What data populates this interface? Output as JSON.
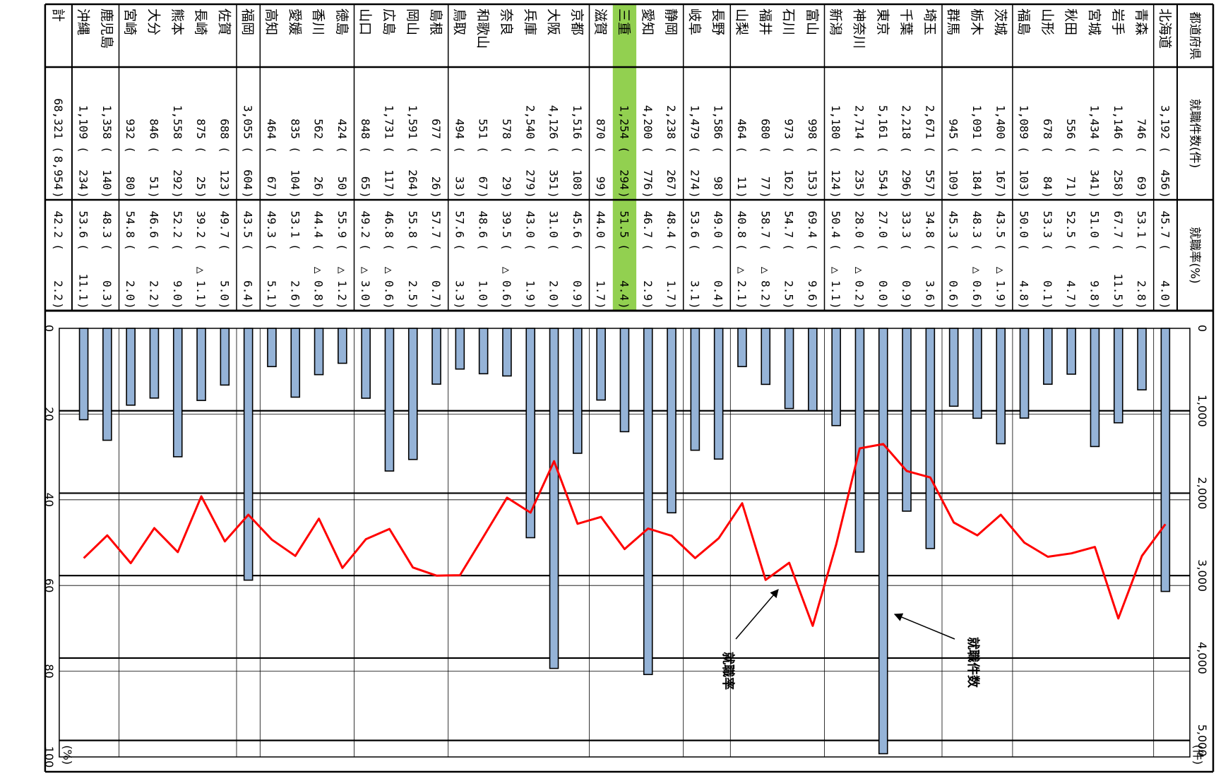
{
  "table": {
    "col_headers": {
      "prefecture": "都道府県",
      "count": "就職件数(件)",
      "rate": "就職率(%)"
    },
    "highlight_color": "#92d050",
    "highlighted_prefecture": "三重",
    "rows": [
      {
        "pref": "北海道",
        "count": "3,192",
        "count_change": "456",
        "rate": "45.7",
        "rate_change": "4.0"
      },
      {
        "pref": "青森",
        "count": "746",
        "count_change": "69",
        "rate": "53.1",
        "rate_change": "2.8"
      },
      {
        "pref": "岩手",
        "count": "1,146",
        "count_change": "258",
        "rate": "67.7",
        "rate_change": "11.5"
      },
      {
        "pref": "宮城",
        "count": "1,434",
        "count_change": "341",
        "rate": "51.0",
        "rate_change": "9.8"
      },
      {
        "pref": "秋田",
        "count": "556",
        "count_change": "71",
        "rate": "52.5",
        "rate_change": "4.7"
      },
      {
        "pref": "山形",
        "count": "678",
        "count_change": "84",
        "rate": "53.3",
        "rate_change": "0.1"
      },
      {
        "pref": "福島",
        "count": "1,089",
        "count_change": "103",
        "rate": "50.0",
        "rate_change": "4.8"
      },
      {
        "pref": "茨城",
        "count": "1,400",
        "count_change": "167",
        "rate": "43.5",
        "rate_change": "△ 1.9"
      },
      {
        "pref": "栃木",
        "count": "1,091",
        "count_change": "184",
        "rate": "48.3",
        "rate_change": "△ 0.6"
      },
      {
        "pref": "群馬",
        "count": "945",
        "count_change": "109",
        "rate": "45.3",
        "rate_change": "0.6"
      },
      {
        "pref": "埼玉",
        "count": "2,671",
        "count_change": "557",
        "rate": "34.8",
        "rate_change": "3.6"
      },
      {
        "pref": "千葉",
        "count": "2,218",
        "count_change": "296",
        "rate": "33.3",
        "rate_change": "0.9"
      },
      {
        "pref": "東京",
        "count": "5,161",
        "count_change": "554",
        "rate": "27.0",
        "rate_change": "0.0"
      },
      {
        "pref": "神奈川",
        "count": "2,714",
        "count_change": "235",
        "rate": "28.0",
        "rate_change": "△ 0.2"
      },
      {
        "pref": "新潟",
        "count": "1,180",
        "count_change": "124",
        "rate": "50.4",
        "rate_change": "△ 1.1"
      },
      {
        "pref": "富山",
        "count": "998",
        "count_change": "153",
        "rate": "69.4",
        "rate_change": "9.6"
      },
      {
        "pref": "石川",
        "count": "973",
        "count_change": "162",
        "rate": "54.7",
        "rate_change": "2.5"
      },
      {
        "pref": "福井",
        "count": "680",
        "count_change": "77",
        "rate": "58.7",
        "rate_change": "△ 8.2"
      },
      {
        "pref": "山梨",
        "count": "464",
        "count_change": "11",
        "rate": "40.8",
        "rate_change": "△ 2.1"
      },
      {
        "pref": "長野",
        "count": "1,586",
        "count_change": "98",
        "rate": "49.0",
        "rate_change": "0.4"
      },
      {
        "pref": "岐阜",
        "count": "1,479",
        "count_change": "274",
        "rate": "53.6",
        "rate_change": "3.1"
      },
      {
        "pref": "静岡",
        "count": "2,238",
        "count_change": "267",
        "rate": "48.4",
        "rate_change": "1.7"
      },
      {
        "pref": "愛知",
        "count": "4,200",
        "count_change": "776",
        "rate": "46.7",
        "rate_change": "2.9"
      },
      {
        "pref": "三重",
        "count": "1,254",
        "count_change": "294",
        "rate": "51.5",
        "rate_change": "4.4"
      },
      {
        "pref": "滋賀",
        "count": "870",
        "count_change": "99",
        "rate": "44.0",
        "rate_change": "1.7"
      },
      {
        "pref": "京都",
        "count": "1,516",
        "count_change": "108",
        "rate": "45.6",
        "rate_change": "0.9"
      },
      {
        "pref": "大阪",
        "count": "4,126",
        "count_change": "351",
        "rate": "31.0",
        "rate_change": "2.0"
      },
      {
        "pref": "兵庫",
        "count": "2,540",
        "count_change": "279",
        "rate": "43.0",
        "rate_change": "1.9"
      },
      {
        "pref": "奈良",
        "count": "578",
        "count_change": "29",
        "rate": "39.5",
        "rate_change": "△ 0.6"
      },
      {
        "pref": "和歌山",
        "count": "551",
        "count_change": "67",
        "rate": "48.6",
        "rate_change": "1.0"
      },
      {
        "pref": "鳥取",
        "count": "494",
        "count_change": "33",
        "rate": "57.6",
        "rate_change": "3.3"
      },
      {
        "pref": "島根",
        "count": "677",
        "count_change": "26",
        "rate": "57.7",
        "rate_change": "0.7"
      },
      {
        "pref": "岡山",
        "count": "1,591",
        "count_change": "264",
        "rate": "55.8",
        "rate_change": "2.5"
      },
      {
        "pref": "広島",
        "count": "1,731",
        "count_change": "117",
        "rate": "46.8",
        "rate_change": "△ 0.6"
      },
      {
        "pref": "山口",
        "count": "848",
        "count_change": "65",
        "rate": "49.2",
        "rate_change": "△ 3.0"
      },
      {
        "pref": "徳島",
        "count": "424",
        "count_change": "50",
        "rate": "55.9",
        "rate_change": "△ 1.2"
      },
      {
        "pref": "香川",
        "count": "562",
        "count_change": "26",
        "rate": "44.4",
        "rate_change": "△ 0.8"
      },
      {
        "pref": "愛媛",
        "count": "835",
        "count_change": "104",
        "rate": "53.1",
        "rate_change": "2.6"
      },
      {
        "pref": "高知",
        "count": "464",
        "count_change": "67",
        "rate": "49.3",
        "rate_change": "5.1"
      },
      {
        "pref": "福岡",
        "count": "3,055",
        "count_change": "604",
        "rate": "43.5",
        "rate_change": "6.4"
      },
      {
        "pref": "佐賀",
        "count": "688",
        "count_change": "123",
        "rate": "49.7",
        "rate_change": "5.0"
      },
      {
        "pref": "長崎",
        "count": "875",
        "count_change": "25",
        "rate": "39.2",
        "rate_change": "△ 1.1"
      },
      {
        "pref": "熊本",
        "count": "1,558",
        "count_change": "292",
        "rate": "52.2",
        "rate_change": "9.0"
      },
      {
        "pref": "大分",
        "count": "846",
        "count_change": "51",
        "rate": "46.6",
        "rate_change": "2.2"
      },
      {
        "pref": "宮崎",
        "count": "932",
        "count_change": "80",
        "rate": "54.8",
        "rate_change": "2.0"
      },
      {
        "pref": "鹿児島",
        "count": "1,358",
        "count_change": "140",
        "rate": "48.3",
        "rate_change": "0.3"
      },
      {
        "pref": "沖縄",
        "count": "1,109",
        "count_change": "234",
        "rate": "53.6",
        "rate_change": "11.1"
      }
    ],
    "total": {
      "pref": "計",
      "count": "68,321",
      "count_change": "8,954",
      "rate": "42.2",
      "rate_change": "2.2"
    },
    "group_ends": [
      0,
      6,
      9,
      14,
      18,
      20,
      24,
      30,
      34,
      38,
      39,
      44,
      46
    ]
  },
  "chart_data": {
    "type": "bar+line",
    "orientation": "rotated-90-clockwise",
    "categories": [
      "北海道",
      "青森",
      "岩手",
      "宮城",
      "秋田",
      "山形",
      "福島",
      "茨城",
      "栃木",
      "群馬",
      "埼玉",
      "千葉",
      "東京",
      "神奈川",
      "新潟",
      "富山",
      "石川",
      "福井",
      "山梨",
      "長野",
      "岐阜",
      "静岡",
      "愛知",
      "三重",
      "滋賀",
      "京都",
      "大阪",
      "兵庫",
      "奈良",
      "和歌山",
      "鳥取",
      "島根",
      "岡山",
      "広島",
      "山口",
      "徳島",
      "香川",
      "愛媛",
      "高知",
      "福岡",
      "佐賀",
      "長崎",
      "熊本",
      "大分",
      "宮崎",
      "鹿児島",
      "沖縄"
    ],
    "series": [
      {
        "name": "就職件数",
        "chart_type": "bar",
        "axis": "count",
        "color": "#95b3d7",
        "values": [
          3192,
          746,
          1146,
          1434,
          556,
          678,
          1089,
          1400,
          1091,
          945,
          2671,
          2218,
          5161,
          2714,
          1180,
          998,
          973,
          680,
          464,
          1586,
          1479,
          2238,
          4200,
          1254,
          870,
          1516,
          4126,
          2540,
          578,
          551,
          494,
          677,
          1591,
          1731,
          848,
          424,
          562,
          835,
          464,
          3055,
          688,
          875,
          1558,
          846,
          932,
          1358,
          1109
        ]
      },
      {
        "name": "就職率",
        "chart_type": "line",
        "axis": "rate",
        "color": "#ff0000",
        "values": [
          45.7,
          53.1,
          67.7,
          51.0,
          52.5,
          53.3,
          50.0,
          43.5,
          48.3,
          45.3,
          34.8,
          33.3,
          27.0,
          28.0,
          50.4,
          69.4,
          54.7,
          58.7,
          40.8,
          49.0,
          53.6,
          48.4,
          46.7,
          51.5,
          44.0,
          45.6,
          31.0,
          43.0,
          39.5,
          48.6,
          57.6,
          57.7,
          55.8,
          46.8,
          49.2,
          55.9,
          44.4,
          53.1,
          49.3,
          43.5,
          49.7,
          39.2,
          52.2,
          46.6,
          54.8,
          48.3,
          53.6
        ]
      }
    ],
    "count_axis": {
      "unit": "(件)",
      "range": [
        0,
        5200
      ],
      "ticks": [
        "0",
        "1,000",
        "2,000",
        "3,000",
        "4,000",
        "5,000"
      ]
    },
    "rate_axis": {
      "unit": "(%)",
      "range": [
        0,
        100
      ],
      "ticks": [
        "0",
        "20",
        "40",
        "60",
        "80",
        "100"
      ]
    },
    "annotations": {
      "count": "就職件数",
      "rate": "就職率"
    },
    "grid": true
  }
}
